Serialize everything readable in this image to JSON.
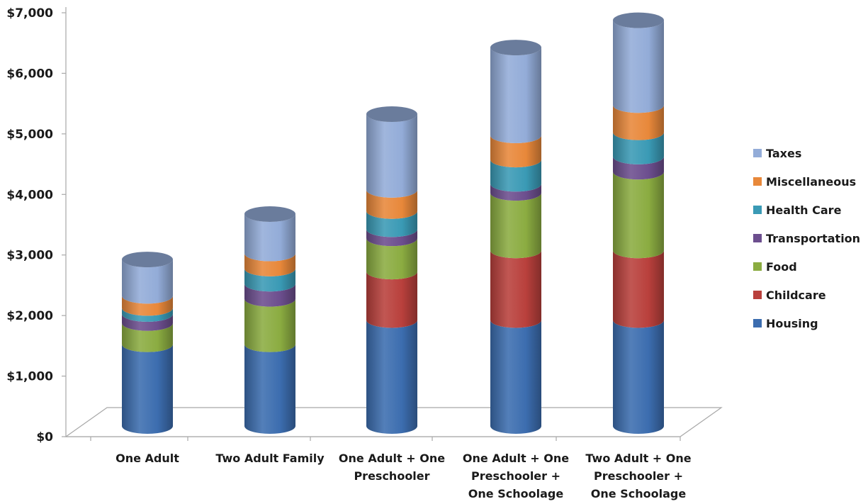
{
  "chart_data": {
    "type": "bar",
    "stacked": true,
    "three_d": true,
    "title": "",
    "xlabel": "",
    "ylabel": "",
    "ylim": [
      0,
      7000
    ],
    "y_ticks": [
      "$0",
      "$1,000",
      "$2,000",
      "$3,000",
      "$4,000",
      "$5,000",
      "$6,000",
      "$7,000"
    ],
    "y_tick_values": [
      0,
      1000,
      2000,
      3000,
      4000,
      5000,
      6000,
      7000
    ],
    "grid": false,
    "legend_position": "right",
    "categories": [
      [
        "One Adult"
      ],
      [
        "Two Adult Family"
      ],
      [
        "One Adult + One",
        "Preschooler"
      ],
      [
        "One Adult + One",
        "Preschooler +",
        "One Schoolage"
      ],
      [
        "Two Adult + One",
        "Preschooler +",
        "One Schoolage"
      ]
    ],
    "series": [
      {
        "name": "Housing",
        "color": "#3c6daf",
        "values": [
          1350,
          1350,
          1750,
          1750,
          1750
        ]
      },
      {
        "name": "Childcare",
        "color": "#b9403c",
        "values": [
          0,
          0,
          800,
          1150,
          1150
        ]
      },
      {
        "name": "Food",
        "color": "#8bac41",
        "values": [
          350,
          750,
          550,
          950,
          1300
        ]
      },
      {
        "name": "Transportation",
        "color": "#6c4e8e",
        "values": [
          150,
          250,
          150,
          150,
          250
        ]
      },
      {
        "name": "Health Care",
        "color": "#3a9ab5",
        "values": [
          100,
          250,
          300,
          400,
          400
        ]
      },
      {
        "name": "Miscellaneous",
        "color": "#e8883a",
        "values": [
          200,
          250,
          350,
          400,
          450
        ]
      },
      {
        "name": "Taxes",
        "color": "#93acd8",
        "values": [
          600,
          650,
          1250,
          1450,
          1400
        ]
      }
    ]
  }
}
